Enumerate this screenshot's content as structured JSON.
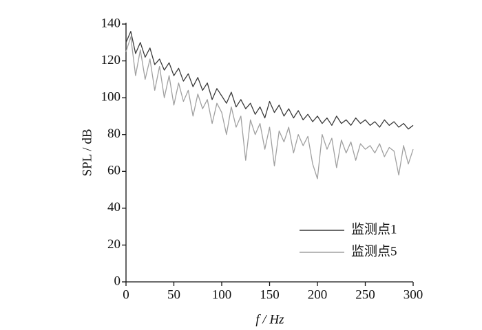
{
  "chart_data": {
    "type": "line",
    "xlabel": "f / Hz",
    "ylabel": "SPL / dB",
    "x": [
      0,
      5,
      10,
      15,
      20,
      25,
      30,
      35,
      40,
      45,
      50,
      55,
      60,
      65,
      70,
      75,
      80,
      85,
      90,
      95,
      100,
      105,
      110,
      115,
      120,
      125,
      130,
      135,
      140,
      145,
      150,
      155,
      160,
      165,
      170,
      175,
      180,
      185,
      190,
      195,
      200,
      205,
      210,
      215,
      220,
      225,
      230,
      235,
      240,
      245,
      250,
      255,
      260,
      265,
      270,
      275,
      280,
      285,
      290,
      295,
      300
    ],
    "series": [
      {
        "name": "监测点1",
        "color": "#3a3a3a",
        "values": [
          130,
          136,
          124,
          130,
          122,
          127,
          118,
          121,
          115,
          119,
          112,
          116,
          109,
          113,
          106,
          111,
          104,
          108,
          99,
          105,
          101,
          97,
          103,
          95,
          99,
          94,
          97,
          91,
          95,
          89,
          98,
          92,
          96,
          90,
          94,
          89,
          93,
          88,
          91,
          87,
          90,
          86,
          89,
          85,
          90,
          86,
          88,
          85,
          89,
          86,
          88,
          85,
          87,
          84,
          88,
          85,
          87,
          84,
          86,
          83,
          85
        ]
      },
      {
        "name": "监测点5",
        "color": "#a0a0a0",
        "values": [
          125,
          133,
          112,
          126,
          110,
          121,
          104,
          117,
          100,
          112,
          96,
          108,
          98,
          104,
          90,
          102,
          94,
          99,
          86,
          97,
          92,
          80,
          95,
          84,
          90,
          66,
          88,
          80,
          86,
          72,
          84,
          63,
          82,
          76,
          84,
          70,
          80,
          74,
          79,
          64,
          56,
          80,
          72,
          78,
          62,
          77,
          70,
          76,
          66,
          75,
          72,
          74,
          70,
          75,
          68,
          73,
          71,
          58,
          74,
          64,
          72
        ]
      }
    ],
    "xlim": [
      0,
      300
    ],
    "xticks": [
      0,
      50,
      100,
      150,
      200,
      250,
      300
    ],
    "ylim": [
      0,
      140
    ],
    "yticks": [
      0,
      20,
      40,
      60,
      80,
      100,
      120,
      140
    ],
    "legend": "lower right"
  }
}
